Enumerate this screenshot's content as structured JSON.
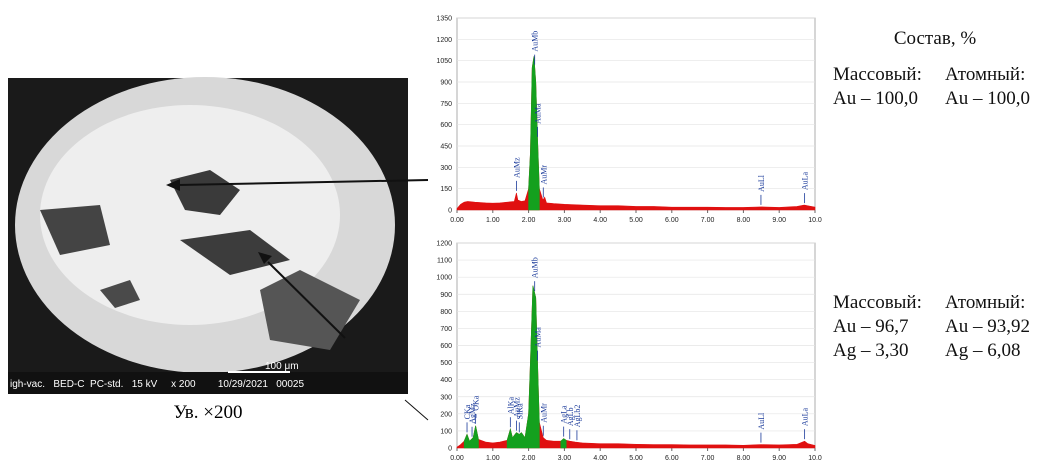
{
  "chart_data": [
    {
      "type": "area",
      "x": [
        0,
        0.1,
        0.2,
        0.3,
        0.5,
        0.8,
        1.0,
        1.2,
        1.4,
        1.6,
        1.66,
        1.7,
        1.8,
        1.9,
        2.0,
        2.05,
        2.1,
        2.15,
        2.2,
        2.25,
        2.3,
        2.4,
        2.45,
        2.5,
        2.7,
        3.0,
        3.5,
        4.0,
        4.5,
        5.0,
        5.5,
        6.0,
        6.5,
        7.0,
        7.5,
        8.0,
        8.5,
        9.0,
        9.5,
        9.7,
        9.8,
        10.0
      ],
      "series": [
        {
          "color": "#e01010",
          "values": [
            10,
            40,
            55,
            60,
            55,
            50,
            48,
            50,
            55,
            60,
            120,
            70,
            60,
            65,
            150,
            400,
            1000,
            1080,
            900,
            500,
            150,
            70,
            90,
            50,
            45,
            40,
            35,
            30,
            30,
            25,
            25,
            20,
            20,
            20,
            18,
            18,
            22,
            18,
            25,
            35,
            30,
            20
          ]
        },
        {
          "color": "#14a01e",
          "values": [
            null,
            null,
            null,
            null,
            null,
            null,
            null,
            null,
            null,
            null,
            null,
            null,
            null,
            null,
            150,
            400,
            1000,
            1080,
            900,
            500,
            150,
            null,
            null,
            null,
            null,
            null,
            null,
            null,
            null,
            null,
            null,
            null,
            null,
            null,
            null,
            null,
            null,
            null,
            null,
            null,
            null,
            null
          ]
        }
      ],
      "xlim": [
        0,
        10
      ],
      "ylim": [
        0,
        1350
      ],
      "xticks": [
        {
          "value": 0,
          "label": "0.00"
        },
        {
          "value": 1,
          "label": "1.00"
        },
        {
          "value": 2,
          "label": "2.00"
        },
        {
          "value": 3,
          "label": "3.00"
        },
        {
          "value": 4,
          "label": "4.00"
        },
        {
          "value": 5,
          "label": "5.00"
        },
        {
          "value": 6,
          "label": "6.00"
        },
        {
          "value": 7,
          "label": "7.00"
        },
        {
          "value": 8,
          "label": "8.00"
        },
        {
          "value": 9,
          "label": "9.00"
        },
        {
          "value": 10,
          "label": "10.0"
        }
      ],
      "yticks": [
        0,
        150,
        300,
        450,
        600,
        750,
        900,
        1050,
        1200,
        1350
      ],
      "peak_labels": [
        {
          "label": "AuMz",
          "x": 1.66
        },
        {
          "label": "AuMb",
          "x": 2.17
        },
        {
          "label": "AuMa",
          "x": 2.25
        },
        {
          "label": "AuMr",
          "x": 2.41
        },
        {
          "label": "AuLl",
          "x": 8.49
        },
        {
          "label": "AuLa",
          "x": 9.71
        }
      ]
    },
    {
      "type": "area",
      "x": [
        0,
        0.1,
        0.2,
        0.28,
        0.35,
        0.45,
        0.52,
        0.6,
        0.8,
        1.0,
        1.2,
        1.4,
        1.49,
        1.55,
        1.66,
        1.74,
        1.8,
        1.9,
        2.0,
        2.05,
        2.12,
        2.2,
        2.25,
        2.3,
        2.41,
        2.5,
        2.7,
        2.9,
        2.98,
        3.05,
        3.15,
        3.3,
        3.5,
        4.0,
        4.5,
        5.0,
        5.5,
        6.0,
        6.5,
        7.0,
        7.5,
        8.0,
        8.5,
        9.0,
        9.5,
        9.71,
        9.8,
        10.0
      ],
      "series": [
        {
          "color": "#e01010",
          "values": [
            5,
            20,
            40,
            80,
            40,
            60,
            130,
            50,
            35,
            30,
            35,
            45,
            110,
            60,
            90,
            80,
            90,
            60,
            200,
            500,
            950,
            880,
            500,
            150,
            60,
            45,
            40,
            40,
            55,
            45,
            40,
            35,
            30,
            25,
            25,
            22,
            20,
            20,
            18,
            18,
            18,
            16,
            20,
            18,
            22,
            40,
            25,
            15
          ]
        },
        {
          "color": "#14a01e",
          "values": [
            null,
            null,
            40,
            80,
            40,
            60,
            130,
            50,
            null,
            null,
            null,
            45,
            110,
            60,
            90,
            80,
            90,
            60,
            200,
            500,
            950,
            880,
            500,
            150,
            null,
            null,
            null,
            40,
            55,
            45,
            null,
            null,
            null,
            null,
            null,
            null,
            null,
            null,
            null,
            null,
            null,
            null,
            null,
            null,
            null,
            null,
            null,
            null
          ]
        }
      ],
      "xlim": [
        0,
        10
      ],
      "ylim": [
        0,
        1200
      ],
      "xticks": [
        {
          "value": 0,
          "label": "0.00"
        },
        {
          "value": 1,
          "label": "1.00"
        },
        {
          "value": 2,
          "label": "2.00"
        },
        {
          "value": 3,
          "label": "3.00"
        },
        {
          "value": 4,
          "label": "4.00"
        },
        {
          "value": 5,
          "label": "5.00"
        },
        {
          "value": 6,
          "label": "6.00"
        },
        {
          "value": 7,
          "label": "7.00"
        },
        {
          "value": 8,
          "label": "8.00"
        },
        {
          "value": 9,
          "label": "9.00"
        },
        {
          "value": 10,
          "label": "10.0"
        }
      ],
      "yticks": [
        0,
        100,
        200,
        300,
        400,
        500,
        600,
        700,
        800,
        900,
        1000,
        1100,
        1200
      ],
      "peak_labels": [
        {
          "label": "CKa",
          "x": 0.28
        },
        {
          "label": "AgMz",
          "x": 0.42
        },
        {
          "label": "OKa",
          "x": 0.52
        },
        {
          "label": "AlKa",
          "x": 1.49
        },
        {
          "label": "SiKa",
          "x": 1.74
        },
        {
          "label": "AuMz",
          "x": 1.66
        },
        {
          "label": "AuMb",
          "x": 2.17
        },
        {
          "label": "AuMa",
          "x": 2.25
        },
        {
          "label": "AuMr",
          "x": 2.41
        },
        {
          "label": "AgLa",
          "x": 2.98
        },
        {
          "label": "AgLb",
          "x": 3.15
        },
        {
          "label": "AgLb2",
          "x": 3.35
        },
        {
          "label": "AuLl",
          "x": 8.49
        },
        {
          "label": "AuLa",
          "x": 9.71
        }
      ]
    }
  ],
  "image": {
    "info_bar": "igh-vac.   BED-C  PC-std.   15 kV     x 200        10/29/2021   00025",
    "scale_bar": "100 μm",
    "caption": "Ув. ×200"
  },
  "composition": {
    "title": "Состав, %",
    "blocks": [
      {
        "headers": [
          "Массовый:",
          "Атомный:"
        ],
        "rows": [
          [
            "Au – 100,0",
            "Au – 100,0"
          ]
        ]
      },
      {
        "headers": [
          "Массовый:",
          "Атомный:"
        ],
        "rows": [
          [
            "Au – 96,7",
            "Au – 93,92"
          ],
          [
            "Ag – 3,30",
            "Ag – 6,08"
          ]
        ]
      }
    ]
  }
}
